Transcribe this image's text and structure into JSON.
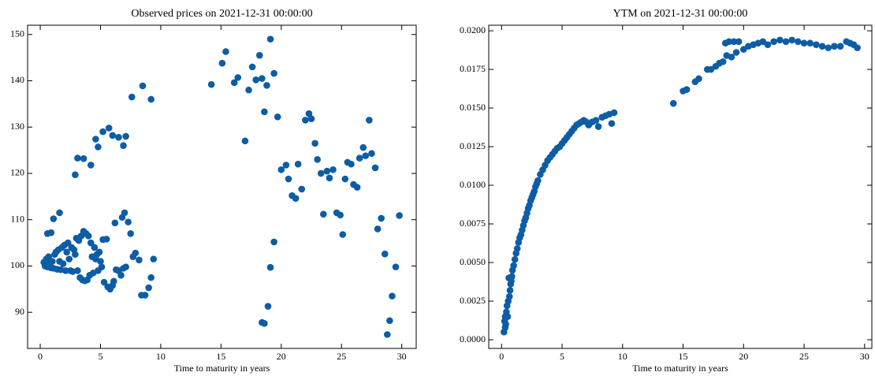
{
  "chart_data": [
    {
      "type": "scatter",
      "title": "Observed prices on 2021-12-31 00:00:00",
      "xlabel": "Time to maturity in years",
      "color": "#0C5DA5",
      "xlim": [
        -1.05,
        31.2
      ],
      "ylim": [
        82.2,
        152.0
      ],
      "xticks": [
        0,
        5,
        10,
        15,
        20,
        25,
        30
      ],
      "yticks": [
        90,
        100,
        110,
        120,
        130,
        140,
        150
      ],
      "x": [
        0.3,
        0.4,
        0.5,
        0.6,
        0.7,
        0.8,
        0.9,
        1.0,
        1.1,
        1.2,
        1.3,
        1.4,
        1.5,
        1.6,
        1.7,
        1.8,
        1.9,
        2.0,
        2.1,
        2.2,
        2.3,
        2.4,
        2.5,
        2.6,
        2.7,
        2.8,
        2.9,
        3.0,
        3.1,
        3.2,
        3.3,
        3.4,
        3.5,
        3.6,
        3.7,
        3.8,
        3.9,
        4.0,
        4.1,
        4.2,
        4.3,
        4.4,
        4.5,
        4.6,
        4.7,
        4.8,
        4.9,
        5.0,
        5.1,
        5.2,
        5.3,
        5.5,
        5.6,
        5.8,
        6.0,
        6.1,
        6.2,
        6.3,
        6.5,
        6.7,
        6.8,
        6.9,
        7.0,
        7.1,
        7.3,
        7.5,
        7.7,
        7.9,
        8.2,
        8.4,
        8.7,
        9.0,
        9.2,
        9.4,
        0.6,
        0.9,
        1.1,
        1.6,
        2.9,
        3.1,
        3.6,
        4.2,
        4.6,
        4.8,
        5.2,
        5.7,
        6.0,
        6.5,
        6.9,
        7.1,
        7.6,
        8.5,
        9.2,
        14.2,
        15.1,
        15.4,
        16.1,
        16.4,
        17.0,
        17.3,
        17.6,
        17.9,
        18.2,
        18.4,
        18.6,
        18.8,
        19.1,
        19.4,
        19.7,
        18.4,
        18.6,
        18.9,
        19.1,
        19.4,
        20.0,
        20.4,
        20.6,
        20.9,
        21.2,
        21.4,
        21.7,
        22.0,
        22.3,
        22.5,
        22.8,
        23.0,
        23.3,
        23.5,
        23.8,
        24.0,
        24.3,
        24.6,
        24.9,
        25.1,
        25.3,
        25.5,
        25.8,
        26.0,
        26.3,
        26.5,
        26.8,
        27.0,
        27.3,
        27.5,
        27.8,
        28.0,
        28.3,
        28.6,
        28.8,
        29.0,
        29.2,
        29.5,
        29.8
      ],
      "values": [
        100.8,
        100,
        101.5,
        99.8,
        102,
        100.5,
        99.6,
        101,
        99.5,
        102.5,
        103,
        99.3,
        103.5,
        101,
        99.2,
        104,
        100.5,
        104.5,
        99,
        103,
        105,
        101.5,
        99,
        104,
        98.8,
        103.5,
        102.5,
        106,
        99,
        105.5,
        97.5,
        106.5,
        97,
        107.5,
        96.8,
        107,
        97,
        106.5,
        98,
        105,
        102,
        98.5,
        104,
        101.5,
        102.5,
        99,
        103,
        101,
        99.8,
        105.7,
        96.5,
        105.8,
        95.5,
        95,
        95.8,
        96.7,
        109.3,
        99.2,
        99,
        98,
        110.5,
        99.5,
        111.5,
        99.8,
        109.5,
        107,
        102,
        102.8,
        101.3,
        93.7,
        93.7,
        95.3,
        97.5,
        101.5,
        107,
        107.2,
        110.2,
        111.5,
        119.7,
        123.3,
        123.2,
        121.8,
        127.4,
        125.7,
        129,
        129.8,
        128.2,
        127.8,
        126,
        128,
        136.5,
        138.9,
        136,
        139.2,
        143.8,
        146.3,
        139.6,
        140.7,
        127,
        138,
        143,
        140.2,
        145.5,
        140.5,
        133.3,
        139,
        149,
        141.6,
        132.2,
        87.8,
        87.6,
        91.3,
        99.7,
        105.2,
        120.8,
        121.8,
        118.8,
        115.2,
        114.6,
        122,
        116.6,
        131.5,
        132.9,
        131.8,
        126.5,
        123,
        120,
        111.2,
        120.5,
        119,
        120.8,
        111.5,
        111,
        106.8,
        118.8,
        122.4,
        122,
        117.6,
        117,
        123.3,
        125.6,
        123.8,
        131.5,
        124.3,
        121.2,
        108,
        110.3,
        102.6,
        85.2,
        88.2,
        93.5,
        99.8,
        110.9
      ]
    },
    {
      "type": "scatter",
      "title": "YTM on 2021-12-31 00:00:00",
      "xlabel": "Time to maturity in years",
      "color": "#0C5DA5",
      "xlim": [
        -1.06,
        30.6
      ],
      "ylim": [
        -0.00056,
        0.02036
      ],
      "xticks": [
        0,
        5,
        10,
        15,
        20,
        25,
        30
      ],
      "yticks": [
        {
          "value": 0,
          "label": "0.0000"
        },
        {
          "value": 0.0025,
          "label": "0.0025"
        },
        {
          "value": 0.005,
          "label": "0.0050"
        },
        {
          "value": 0.0075,
          "label": "0.0075"
        },
        {
          "value": 0.01,
          "label": "0.0100"
        },
        {
          "value": 0.0125,
          "label": "0.0125"
        },
        {
          "value": 0.015,
          "label": "0.0150"
        },
        {
          "value": 0.0175,
          "label": "0.0175"
        },
        {
          "value": 0.02,
          "label": "0.0200"
        }
      ],
      "x": [
        0.2,
        0.25,
        0.3,
        0.3,
        0.35,
        0.4,
        0.45,
        0.5,
        0.55,
        0.6,
        0.65,
        0.7,
        0.75,
        0.8,
        0.85,
        0.9,
        1.0,
        1.1,
        1.2,
        1.3,
        1.4,
        1.5,
        1.6,
        1.7,
        1.8,
        1.9,
        2.0,
        2.1,
        2.2,
        2.3,
        2.4,
        2.5,
        2.6,
        2.7,
        2.8,
        2.9,
        3.0,
        3.2,
        3.4,
        3.6,
        3.8,
        4.0,
        4.2,
        4.4,
        4.6,
        4.8,
        5.0,
        5.2,
        5.4,
        5.6,
        5.8,
        6.0,
        6.2,
        6.4,
        6.6,
        6.8,
        7.0,
        7.2,
        7.5,
        7.8,
        8.0,
        8.3,
        8.6,
        8.9,
        9.1,
        9.3,
        14.2,
        15.0,
        15.3,
        16.0,
        16.3,
        17.0,
        17.3,
        17.7,
        18.0,
        18.3,
        18.5,
        18.6,
        18.8,
        19.0,
        19.2,
        19.4,
        19.6,
        20.0,
        20.4,
        20.8,
        21.2,
        21.6,
        22.0,
        22.5,
        23.0,
        23.5,
        24.0,
        24.5,
        25.0,
        25.5,
        26.0,
        26.5,
        27.0,
        27.5,
        28.0,
        28.5,
        28.8,
        29.1,
        29.4
      ],
      "values": [
        0.0005,
        0.0012,
        0.0008,
        0.0015,
        0.001,
        0.0018,
        0.0022,
        0.0015,
        0.0025,
        0.004,
        0.0028,
        0.0032,
        0.0036,
        0.0038,
        0.0041,
        0.0045,
        0.0048,
        0.0052,
        0.0056,
        0.0059,
        0.0063,
        0.0066,
        0.0068,
        0.0071,
        0.0074,
        0.0077,
        0.0079,
        0.0082,
        0.0085,
        0.0087,
        0.009,
        0.0092,
        0.0094,
        0.0096,
        0.0099,
        0.0101,
        0.0103,
        0.0107,
        0.011,
        0.0113,
        0.0116,
        0.0118,
        0.012,
        0.0122,
        0.0124,
        0.0125,
        0.0127,
        0.0129,
        0.0131,
        0.0133,
        0.0135,
        0.0137,
        0.0139,
        0.014,
        0.0141,
        0.0142,
        0.0141,
        0.0139,
        0.0141,
        0.0142,
        0.0138,
        0.0144,
        0.0145,
        0.0146,
        0.014,
        0.0147,
        0.0153,
        0.0161,
        0.0162,
        0.0167,
        0.0169,
        0.0175,
        0.0175,
        0.0177,
        0.0179,
        0.018,
        0.0192,
        0.0184,
        0.0193,
        0.0183,
        0.0193,
        0.0186,
        0.0193,
        0.0188,
        0.019,
        0.0191,
        0.0192,
        0.0193,
        0.0191,
        0.0193,
        0.0194,
        0.0193,
        0.0194,
        0.0193,
        0.0192,
        0.0192,
        0.0191,
        0.019,
        0.0189,
        0.019,
        0.019,
        0.0193,
        0.0192,
        0.0191,
        0.0189
      ]
    }
  ]
}
